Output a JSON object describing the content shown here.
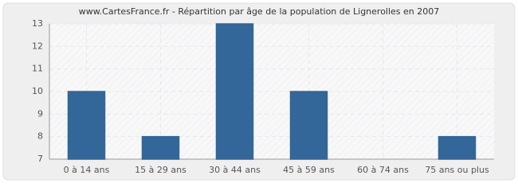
{
  "chart_data": {
    "type": "bar",
    "title": "www.CartesFrance.fr - Répartition par âge de la population de Lignerolles en 2007",
    "categories": [
      "0 à 14 ans",
      "15 à 29 ans",
      "30 à 44 ans",
      "45 à 59 ans",
      "60 à 74 ans",
      "75 ans ou plus"
    ],
    "values": [
      10,
      8,
      13,
      10,
      7,
      8
    ],
    "color": "#336699",
    "ylim": [
      7,
      13
    ],
    "yticks": [
      7,
      8,
      9,
      10,
      11,
      12,
      13
    ],
    "grid": true
  }
}
